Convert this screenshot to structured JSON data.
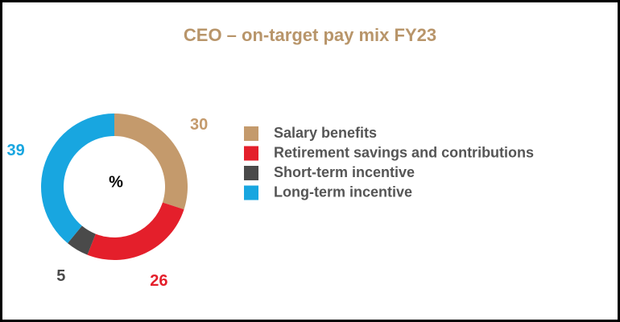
{
  "chart_data": {
    "type": "donut",
    "title": "CEO – on-target pay mix FY23",
    "center_label": "%",
    "categories": [
      "Salary benefits",
      "Retirement savings and contributions",
      "Short-term incentive",
      "Long-term incentive"
    ],
    "values": [
      30,
      26,
      5,
      39
    ],
    "colors": [
      "#c49a6c",
      "#e41f2b",
      "#4a4a4a",
      "#18a6e0"
    ],
    "legend": "right"
  }
}
